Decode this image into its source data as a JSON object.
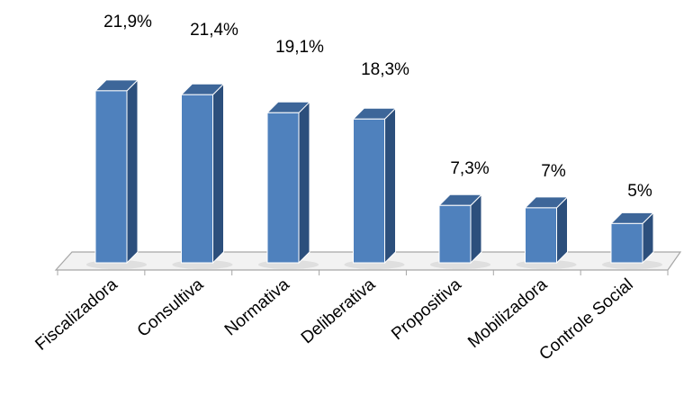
{
  "colors": {
    "bar_front": "#4f81bd",
    "bar_side": "#2c4f7c",
    "bar_top": "#3d6699",
    "bar_edge": "#ffffff",
    "floor_fill": "#f2f2f2",
    "floor_line": "#a6a6a6",
    "shadow": "#d9d9d9"
  },
  "chart_data": {
    "type": "bar",
    "style": "3d-column",
    "title": "",
    "xlabel": "",
    "ylabel": "",
    "categories": [
      "Fiscalizadora",
      "Consultiva",
      "Normativa",
      "Deliberativa",
      "Propositiva",
      "Mobilizadora",
      "Controle Social"
    ],
    "values": [
      21.9,
      21.4,
      19.1,
      18.3,
      7.3,
      7,
      5
    ],
    "data_labels": [
      "21,9%",
      "21,4%",
      "19,1%",
      "18,3%",
      "7,3%",
      "7%",
      "5%"
    ],
    "ylim": [
      0,
      22
    ],
    "grid": false,
    "legend": "none"
  }
}
